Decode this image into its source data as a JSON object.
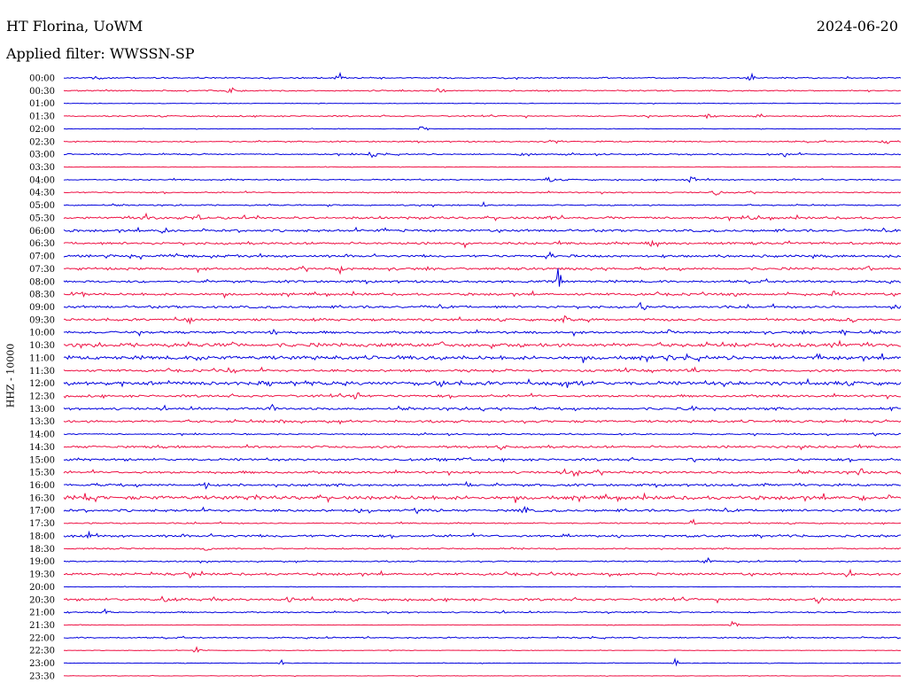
{
  "header": {
    "station": "HT Florina, UoWM",
    "date": "2024-06-20",
    "filter": "Applied filter: WWSSN-SP"
  },
  "side_label": "HHZ - 10000",
  "colors": {
    "a": "#0000dd",
    "b": "#ee1144"
  },
  "chart_data": {
    "type": "line",
    "title": "",
    "ylabel": "HHZ - 10000",
    "grid": false,
    "rows": [
      {
        "time": "00:00",
        "color": "a",
        "activity": 1,
        "events": [
          0.04,
          0.33,
          0.82
        ]
      },
      {
        "time": "00:30",
        "color": "b",
        "activity": 1,
        "events": [
          0.2,
          0.45
        ]
      },
      {
        "time": "01:00",
        "color": "a",
        "activity": 0,
        "events": []
      },
      {
        "time": "01:30",
        "color": "b",
        "activity": 1,
        "events": [
          0.77,
          0.83
        ]
      },
      {
        "time": "02:00",
        "color": "a",
        "activity": 0,
        "events": [
          0.43
        ]
      },
      {
        "time": "02:30",
        "color": "b",
        "activity": 1,
        "events": [
          0.58,
          0.98
        ]
      },
      {
        "time": "03:00",
        "color": "a",
        "activity": 1,
        "events": [
          0.37,
          0.55,
          0.86
        ]
      },
      {
        "time": "03:30",
        "color": "b",
        "activity": 0,
        "events": []
      },
      {
        "time": "04:00",
        "color": "a",
        "activity": 1,
        "events": [
          0.58,
          0.75
        ]
      },
      {
        "time": "04:30",
        "color": "b",
        "activity": 1,
        "events": [
          0.78
        ]
      },
      {
        "time": "05:00",
        "color": "a",
        "activity": 1,
        "events": [
          0.5
        ]
      },
      {
        "time": "05:30",
        "color": "b",
        "activity": 2,
        "events": [
          0.1,
          0.16,
          0.58,
          0.65,
          0.82
        ]
      },
      {
        "time": "06:00",
        "color": "a",
        "activity": 2,
        "events": [
          0.12,
          0.38
        ]
      },
      {
        "time": "06:30",
        "color": "b",
        "activity": 2,
        "events": [
          0.48,
          0.7
        ]
      },
      {
        "time": "07:00",
        "color": "a",
        "activity": 2,
        "events": [
          0.58
        ]
      },
      {
        "time": "07:30",
        "color": "b",
        "activity": 2,
        "events": [
          0.33,
          0.96
        ]
      },
      {
        "time": "08:00",
        "color": "a",
        "activity": 2,
        "events": [
          0.59
        ],
        "quake": 0.59
      },
      {
        "time": "08:30",
        "color": "b",
        "activity": 2,
        "events": [
          0.02,
          0.8,
          0.92
        ]
      },
      {
        "time": "09:00",
        "color": "a",
        "activity": 2,
        "events": [
          0.69,
          0.99
        ]
      },
      {
        "time": "09:30",
        "color": "b",
        "activity": 2,
        "events": [
          0.15,
          0.6,
          0.94
        ]
      },
      {
        "time": "10:00",
        "color": "a",
        "activity": 2,
        "events": [
          0.25,
          0.56,
          0.72,
          0.93
        ]
      },
      {
        "time": "10:30",
        "color": "b",
        "activity": 3,
        "events": [
          0.2,
          0.45,
          0.51,
          0.83,
          0.92
        ]
      },
      {
        "time": "11:00",
        "color": "a",
        "activity": 3,
        "events": [
          0.16,
          0.45,
          0.72,
          0.9
        ]
      },
      {
        "time": "11:30",
        "color": "b",
        "activity": 2,
        "events": [
          0.2,
          0.75
        ]
      },
      {
        "time": "12:00",
        "color": "a",
        "activity": 3,
        "events": [
          0.45,
          0.62,
          0.78
        ]
      },
      {
        "time": "12:30",
        "color": "b",
        "activity": 2,
        "events": [
          0.35
        ]
      },
      {
        "time": "13:00",
        "color": "a",
        "activity": 2,
        "events": [
          0.25,
          0.5,
          0.75,
          0.99
        ]
      },
      {
        "time": "13:30",
        "color": "b",
        "activity": 2,
        "events": [
          0.26
        ]
      },
      {
        "time": "14:00",
        "color": "a",
        "activity": 1,
        "events": []
      },
      {
        "time": "14:30",
        "color": "b",
        "activity": 2,
        "events": [
          0.52,
          0.88
        ]
      },
      {
        "time": "15:00",
        "color": "a",
        "activity": 2,
        "events": [
          0.48,
          0.75
        ]
      },
      {
        "time": "15:30",
        "color": "b",
        "activity": 2,
        "events": [
          0.61,
          0.95
        ]
      },
      {
        "time": "16:00",
        "color": "a",
        "activity": 2,
        "events": [
          0.17,
          0.48,
          0.84
        ]
      },
      {
        "time": "16:30",
        "color": "b",
        "activity": 3,
        "events": [
          0.03,
          0.23,
          0.95
        ]
      },
      {
        "time": "17:00",
        "color": "a",
        "activity": 2,
        "events": [
          0.35,
          0.55,
          0.95
        ]
      },
      {
        "time": "17:30",
        "color": "b",
        "activity": 1,
        "events": [
          0.75
        ]
      },
      {
        "time": "18:00",
        "color": "a",
        "activity": 2,
        "events": [
          0.03,
          0.6
        ]
      },
      {
        "time": "18:30",
        "color": "b",
        "activity": 1,
        "events": [
          0.17
        ]
      },
      {
        "time": "19:00",
        "color": "a",
        "activity": 1,
        "events": [
          0.77
        ]
      },
      {
        "time": "19:30",
        "color": "b",
        "activity": 2,
        "events": [
          0.15,
          0.94
        ]
      },
      {
        "time": "20:00",
        "color": "a",
        "activity": 0,
        "events": []
      },
      {
        "time": "20:30",
        "color": "b",
        "activity": 2,
        "events": [
          0.12,
          0.18,
          0.27,
          0.9
        ]
      },
      {
        "time": "21:00",
        "color": "a",
        "activity": 1,
        "events": [
          0.05
        ]
      },
      {
        "time": "21:30",
        "color": "b",
        "activity": 0,
        "events": [
          0.8
        ]
      },
      {
        "time": "22:00",
        "color": "a",
        "activity": 1,
        "events": []
      },
      {
        "time": "22:30",
        "color": "b",
        "activity": 0,
        "events": [
          0.16
        ]
      },
      {
        "time": "23:00",
        "color": "a",
        "activity": 0,
        "events": [
          0.26,
          0.73
        ]
      },
      {
        "time": "23:30",
        "color": "b",
        "activity": 0,
        "events": []
      }
    ]
  }
}
